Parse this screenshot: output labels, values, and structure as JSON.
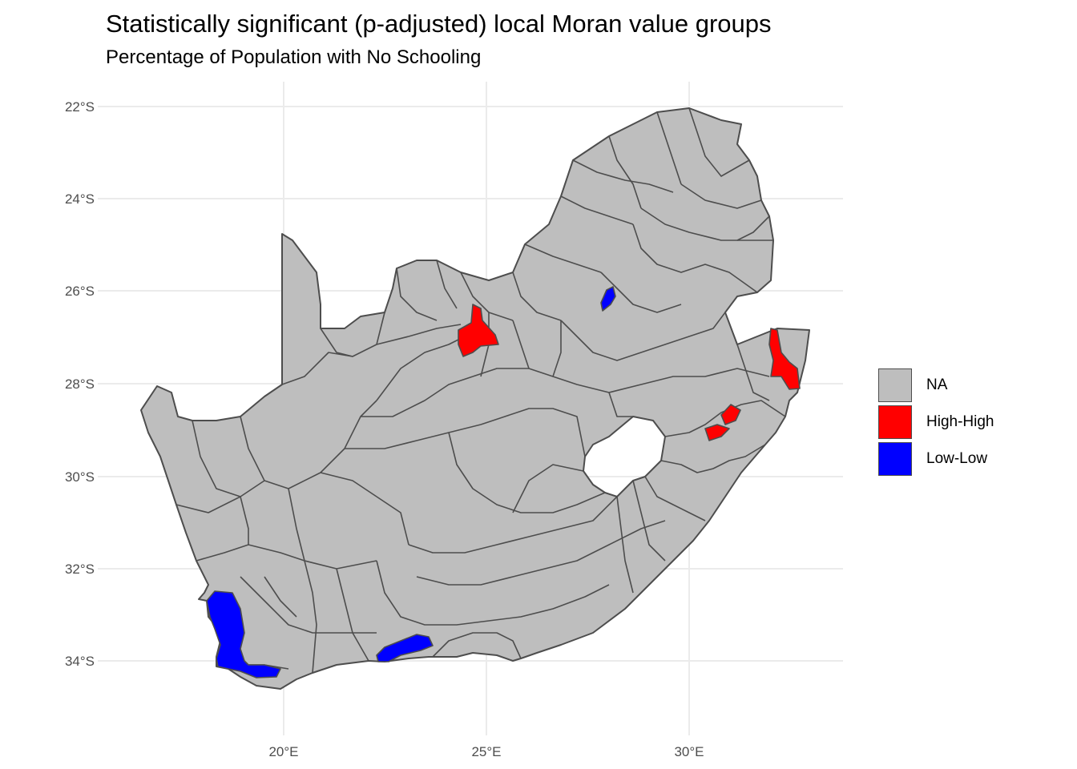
{
  "title": "Statistically significant (p-adjusted) local Moran value groups",
  "subtitle": "Percentage of Population with No Schooling",
  "axes": {
    "y_ticks": [
      "22°S",
      "24°S",
      "26°S",
      "28°S",
      "30°S",
      "32°S",
      "34°S"
    ],
    "x_ticks": [
      "20°E",
      "25°E",
      "30°E"
    ]
  },
  "legend": {
    "items": [
      {
        "label": "NA",
        "color": "#bebebe"
      },
      {
        "label": "High-High",
        "color": "#ff0000"
      },
      {
        "label": "Low-Low",
        "color": "#0000ff"
      }
    ]
  },
  "colors": {
    "na": "#bebebe",
    "high_high": "#ff0000",
    "low_low": "#0000ff",
    "border": "#4d4d4d",
    "grid": "#ebebeb"
  },
  "chart_data": {
    "type": "choropleth",
    "x_range": [
      16.5,
      33.0
    ],
    "y_range": [
      -35.0,
      -22.0
    ],
    "grid": true,
    "legend_position": "right",
    "categories": [
      "NA",
      "High-High",
      "Low-Low"
    ]
  }
}
